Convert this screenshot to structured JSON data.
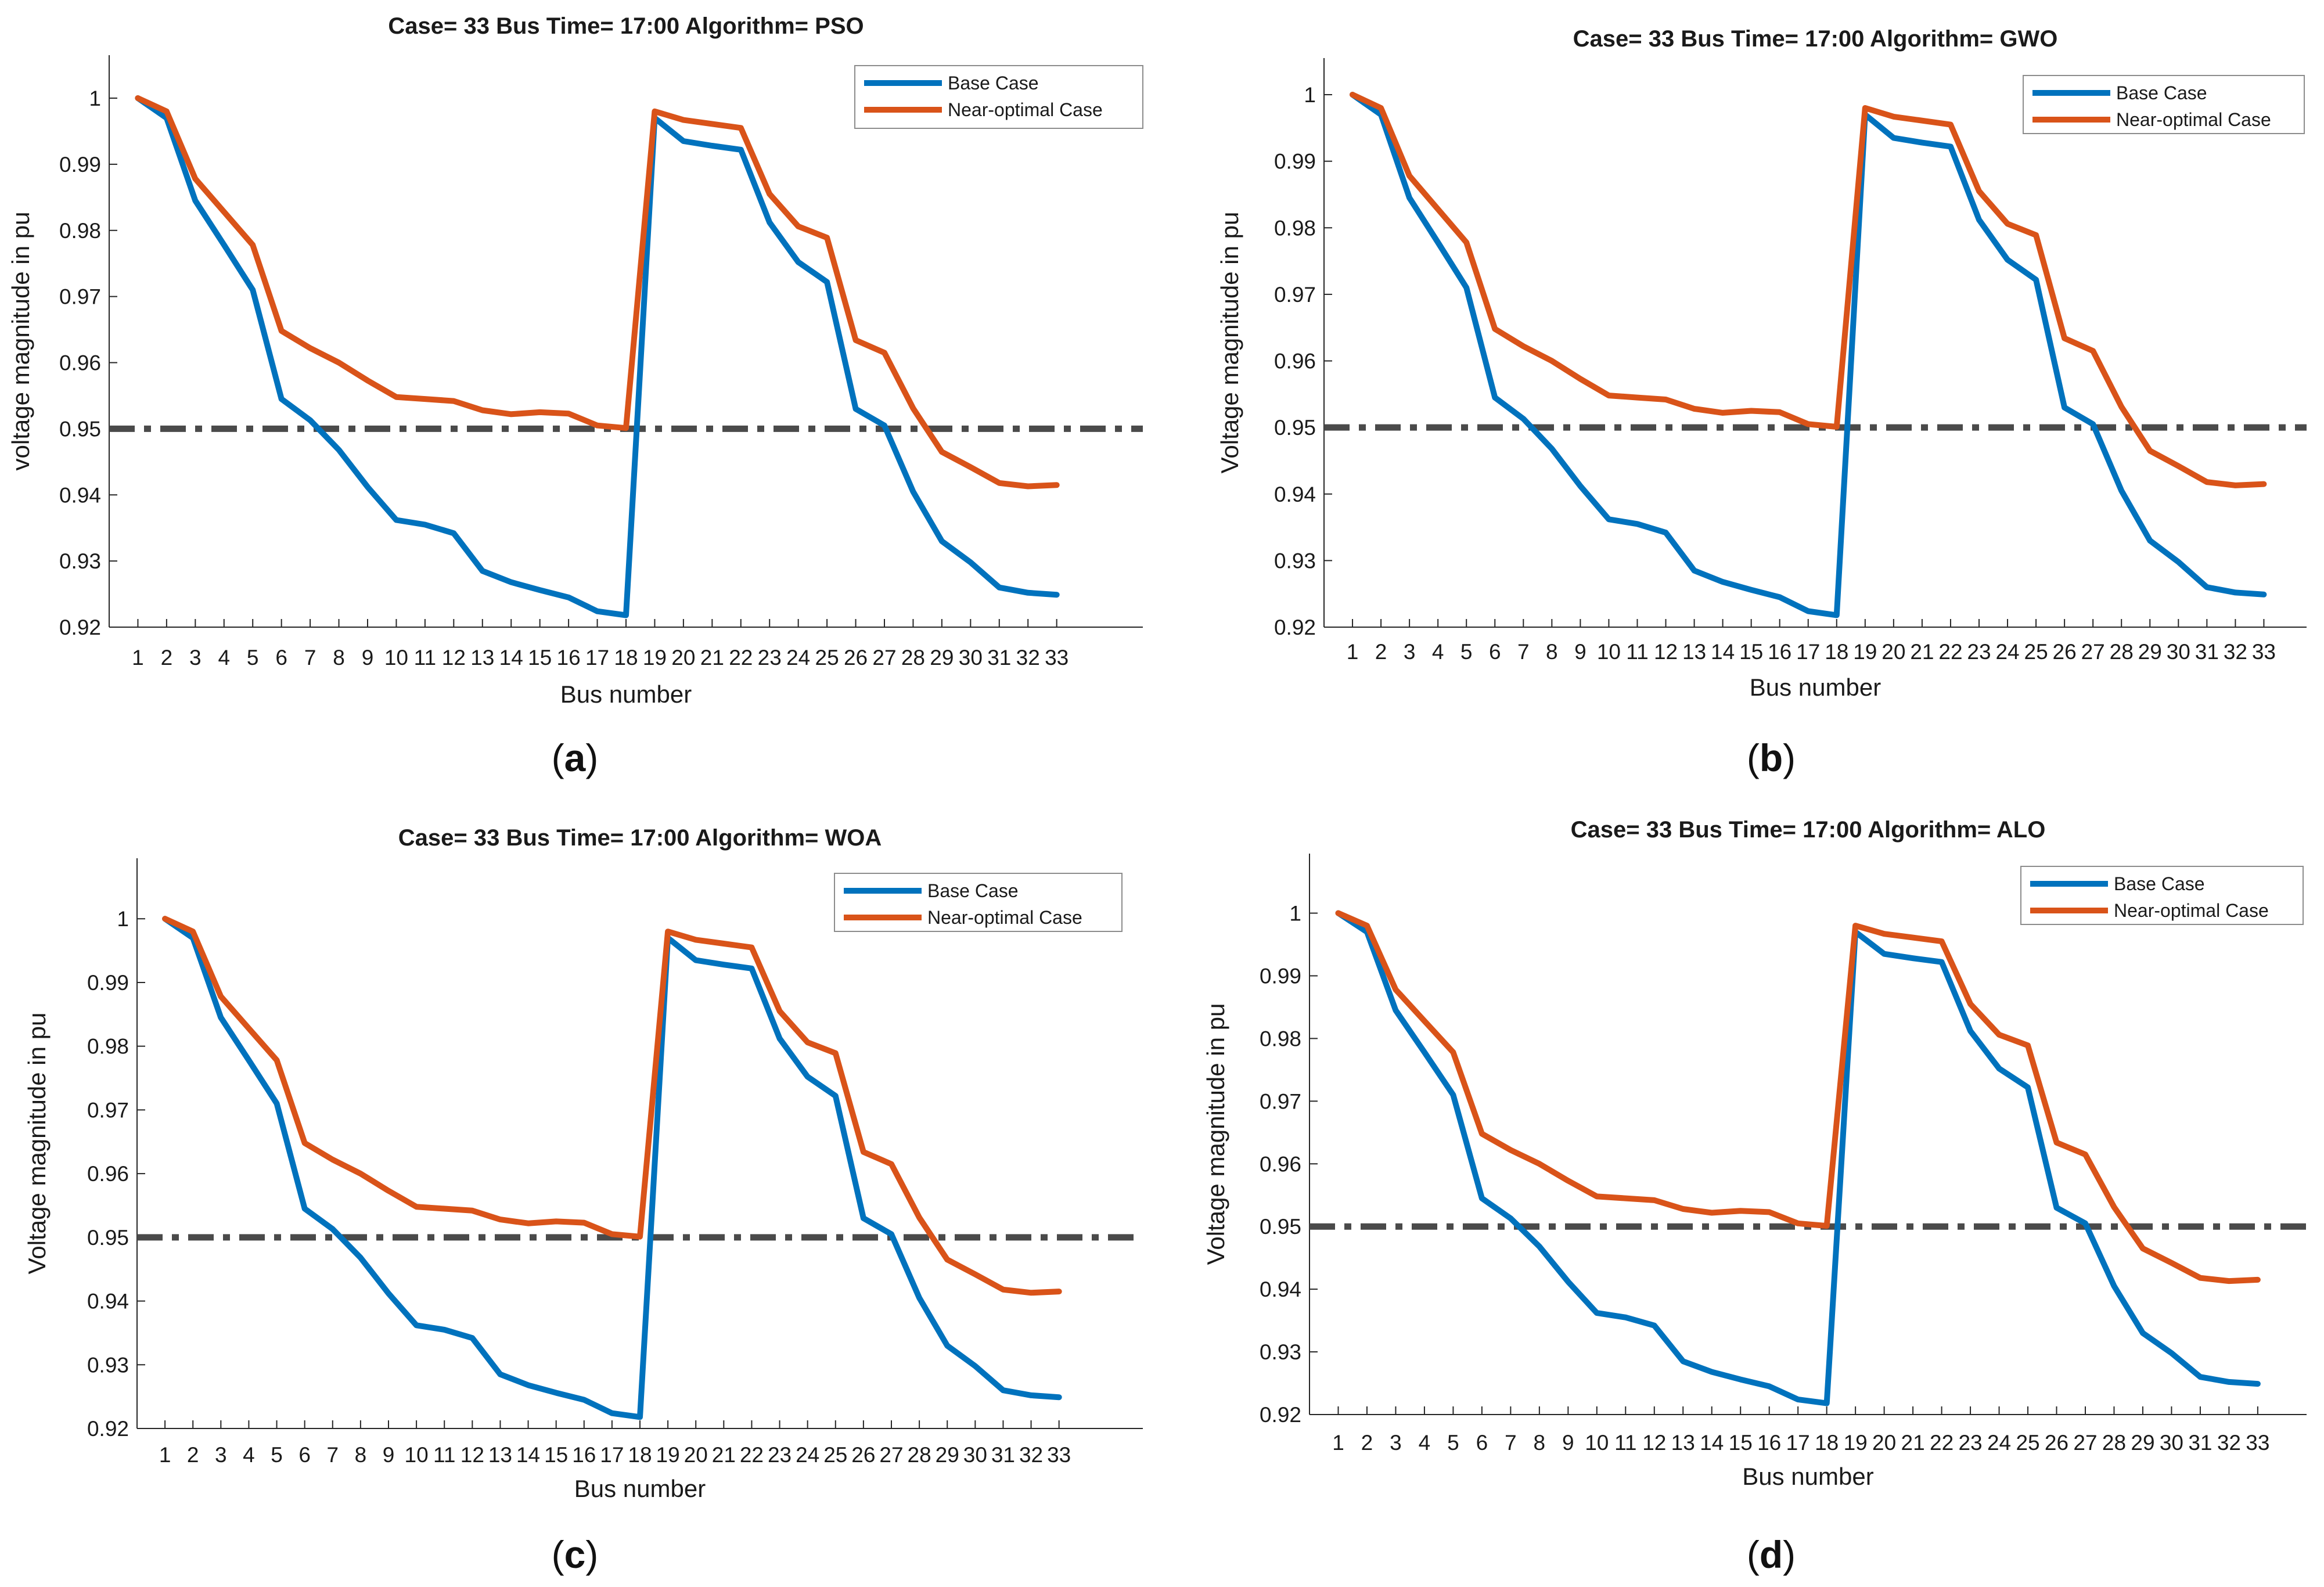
{
  "chart_data": [
    {
      "type": "line",
      "panel_label": "(a)",
      "panel_label_letter": "a",
      "title": "Case= 33 Bus Time= 17:00 Algorithm= PSO",
      "xlabel": "Bus number",
      "ylabel": "voltage magnitude in pu",
      "categories": [
        "1",
        "2",
        "3",
        "4",
        "5",
        "6",
        "7",
        "8",
        "9",
        "10",
        "11",
        "12",
        "13",
        "14",
        "15",
        "16",
        "17",
        "18",
        "19",
        "20",
        "21",
        "22",
        "23",
        "24",
        "25",
        "26",
        "27",
        "28",
        "29",
        "30",
        "31",
        "32",
        "33"
      ],
      "x_ticks": [
        "1",
        "2",
        "3",
        "4",
        "5",
        "6",
        "7",
        "8",
        "9",
        "10",
        "11",
        "12",
        "13",
        "14",
        "15",
        "16",
        "17",
        "18",
        "19",
        "20",
        "21",
        "22",
        "23",
        "24",
        "25",
        "26",
        "27",
        "28",
        "29",
        "30",
        "31",
        "32",
        "33"
      ],
      "y_ticks": [
        "0.92",
        "0.93",
        "0.94",
        "0.95",
        "0.96",
        "0.97",
        "0.98",
        "0.99",
        "1"
      ],
      "ylim": [
        0.92,
        1.0065
      ],
      "xlim": [
        0,
        36
      ],
      "threshold": 0.95,
      "legend_position": "top-right",
      "series": [
        {
          "name": "Base Case",
          "color": "#0072BD",
          "values": [
            1.0,
            0.997,
            0.9845,
            0.9778,
            0.971,
            0.9545,
            0.9513,
            0.9468,
            0.9412,
            0.9362,
            0.9355,
            0.9342,
            0.9285,
            0.9268,
            0.9256,
            0.9245,
            0.9224,
            0.9218,
            0.997,
            0.9935,
            0.9928,
            0.9922,
            0.9812,
            0.9752,
            0.9722,
            0.953,
            0.9505,
            0.9405,
            0.933,
            0.9298,
            0.926,
            0.9252,
            0.9249
          ]
        },
        {
          "name": "Near-optimal Case",
          "color": "#D95319",
          "values": [
            1.0,
            0.998,
            0.9878,
            0.9828,
            0.9778,
            0.9648,
            0.9622,
            0.96,
            0.9573,
            0.9548,
            0.9545,
            0.9542,
            0.9528,
            0.9522,
            0.9525,
            0.9523,
            0.9505,
            0.9501,
            0.998,
            0.9967,
            0.9961,
            0.9955,
            0.9855,
            0.9806,
            0.9789,
            0.9634,
            0.9615,
            0.9531,
            0.9465,
            0.9442,
            0.9418,
            0.9413,
            0.9415
          ]
        }
      ]
    },
    {
      "type": "line",
      "panel_label": "(b)",
      "panel_label_letter": "b",
      "title": "Case= 33 Bus Time= 17:00 Algorithm= GWO",
      "xlabel": "Bus number",
      "ylabel": "Voltage magnitude in pu",
      "categories": [
        "1",
        "2",
        "3",
        "4",
        "5",
        "6",
        "7",
        "8",
        "9",
        "10",
        "11",
        "12",
        "13",
        "14",
        "15",
        "16",
        "17",
        "18",
        "19",
        "20",
        "21",
        "22",
        "23",
        "24",
        "25",
        "26",
        "27",
        "28",
        "29",
        "30",
        "31",
        "32",
        "33"
      ],
      "x_ticks": [
        "1",
        "2",
        "3",
        "4",
        "5",
        "6",
        "7",
        "8",
        "9",
        "10",
        "11",
        "12",
        "13",
        "14",
        "15",
        "16",
        "17",
        "18",
        "19",
        "20",
        "21",
        "22",
        "23",
        "24",
        "25",
        "26",
        "27",
        "28",
        "29",
        "30",
        "31",
        "32",
        "33"
      ],
      "y_ticks": [
        "0.92",
        "0.93",
        "0.94",
        "0.95",
        "0.96",
        "0.97",
        "0.98",
        "0.99",
        "1"
      ],
      "ylim": [
        0.92,
        1.0055
      ],
      "xlim": [
        0,
        34.5
      ],
      "threshold": 0.95,
      "legend_position": "top-right",
      "series": [
        {
          "name": "Base Case",
          "color": "#0072BD",
          "values": [
            1.0,
            0.997,
            0.9845,
            0.9778,
            0.971,
            0.9545,
            0.9513,
            0.9468,
            0.9412,
            0.9362,
            0.9355,
            0.9342,
            0.9285,
            0.9268,
            0.9256,
            0.9245,
            0.9224,
            0.9218,
            0.997,
            0.9935,
            0.9928,
            0.9922,
            0.9812,
            0.9752,
            0.9722,
            0.953,
            0.9505,
            0.9405,
            0.933,
            0.9298,
            0.926,
            0.9252,
            0.9249
          ]
        },
        {
          "name": "Near-optimal Case",
          "color": "#D95319",
          "values": [
            1.0,
            0.998,
            0.9878,
            0.9828,
            0.9778,
            0.9648,
            0.9622,
            0.96,
            0.9573,
            0.9548,
            0.9545,
            0.9542,
            0.9528,
            0.9522,
            0.9525,
            0.9523,
            0.9505,
            0.9501,
            0.998,
            0.9967,
            0.9961,
            0.9955,
            0.9855,
            0.9806,
            0.9789,
            0.9634,
            0.9615,
            0.9531,
            0.9465,
            0.9442,
            0.9418,
            0.9413,
            0.9415
          ]
        }
      ]
    },
    {
      "type": "line",
      "panel_label": "(c)",
      "panel_label_letter": "c",
      "title": "Case= 33 Bus Time= 17:00 Algorithm= WOA",
      "xlabel": "Bus number",
      "ylabel": "Voltage magnitude in pu",
      "categories": [
        "1",
        "2",
        "3",
        "4",
        "5",
        "6",
        "7",
        "8",
        "9",
        "10",
        "11",
        "12",
        "13",
        "14",
        "15",
        "16",
        "17",
        "18",
        "19",
        "20",
        "21",
        "22",
        "23",
        "24",
        "25",
        "26",
        "27",
        "28",
        "29",
        "30",
        "31",
        "32",
        "33"
      ],
      "x_ticks": [
        "1",
        "2",
        "3",
        "4",
        "5",
        "6",
        "7",
        "8",
        "9",
        "10",
        "11",
        "12",
        "13",
        "14",
        "15",
        "16",
        "17",
        "18",
        "19",
        "20",
        "21",
        "22",
        "23",
        "24",
        "25",
        "26",
        "27",
        "28",
        "29",
        "30",
        "31",
        "32",
        "33"
      ],
      "y_ticks": [
        "0.92",
        "0.93",
        "0.94",
        "0.95",
        "0.96",
        "0.97",
        "0.98",
        "0.99",
        "1"
      ],
      "ylim": [
        0.92,
        1.0095
      ],
      "xlim": [
        0,
        36
      ],
      "threshold": 0.95,
      "legend_position": "top-right",
      "series": [
        {
          "name": "Base Case",
          "color": "#0072BD",
          "values": [
            1.0,
            0.997,
            0.9845,
            0.9778,
            0.971,
            0.9545,
            0.9513,
            0.9468,
            0.9412,
            0.9362,
            0.9355,
            0.9342,
            0.9285,
            0.9268,
            0.9256,
            0.9245,
            0.9224,
            0.9218,
            0.997,
            0.9935,
            0.9928,
            0.9922,
            0.9812,
            0.9752,
            0.9722,
            0.953,
            0.9505,
            0.9405,
            0.933,
            0.9298,
            0.926,
            0.9252,
            0.9249
          ]
        },
        {
          "name": "Near-optimal Case",
          "color": "#D95319",
          "values": [
            1.0,
            0.998,
            0.9878,
            0.9828,
            0.9778,
            0.9648,
            0.9622,
            0.96,
            0.9573,
            0.9548,
            0.9545,
            0.9542,
            0.9528,
            0.9522,
            0.9525,
            0.9523,
            0.9505,
            0.9501,
            0.998,
            0.9967,
            0.9961,
            0.9955,
            0.9855,
            0.9806,
            0.9789,
            0.9634,
            0.9615,
            0.9531,
            0.9465,
            0.9442,
            0.9418,
            0.9413,
            0.9415
          ]
        }
      ]
    },
    {
      "type": "line",
      "panel_label": "(d)",
      "panel_label_letter": "d",
      "title": "Case= 33 Bus Time= 17:00 Algorithm= ALO",
      "xlabel": "Bus number",
      "ylabel": "Voltage magnitude in pu",
      "categories": [
        "1",
        "2",
        "3",
        "4",
        "5",
        "6",
        "7",
        "8",
        "9",
        "10",
        "11",
        "12",
        "13",
        "14",
        "15",
        "16",
        "17",
        "18",
        "19",
        "20",
        "21",
        "22",
        "23",
        "24",
        "25",
        "26",
        "27",
        "28",
        "29",
        "30",
        "31",
        "32",
        "33"
      ],
      "x_ticks": [
        "1",
        "2",
        "3",
        "4",
        "5",
        "6",
        "7",
        "8",
        "9",
        "10",
        "11",
        "12",
        "13",
        "14",
        "15",
        "16",
        "17",
        "18",
        "19",
        "20",
        "21",
        "22",
        "23",
        "24",
        "25",
        "26",
        "27",
        "28",
        "29",
        "30",
        "31",
        "32",
        "33"
      ],
      "y_ticks": [
        "0.92",
        "0.93",
        "0.94",
        "0.95",
        "0.96",
        "0.97",
        "0.98",
        "0.99",
        "1"
      ],
      "ylim": [
        0.92,
        1.0095
      ],
      "xlim": [
        0,
        34.7
      ],
      "threshold": 0.95,
      "legend_position": "top-right",
      "series": [
        {
          "name": "Base Case",
          "color": "#0072BD",
          "values": [
            1.0,
            0.997,
            0.9845,
            0.9778,
            0.971,
            0.9545,
            0.9513,
            0.9468,
            0.9412,
            0.9362,
            0.9355,
            0.9342,
            0.9285,
            0.9268,
            0.9256,
            0.9245,
            0.9224,
            0.9218,
            0.997,
            0.9935,
            0.9928,
            0.9922,
            0.9812,
            0.9752,
            0.9722,
            0.953,
            0.9505,
            0.9405,
            0.933,
            0.9298,
            0.926,
            0.9252,
            0.9249
          ]
        },
        {
          "name": "Near-optimal Case",
          "color": "#D95319",
          "values": [
            1.0,
            0.998,
            0.9878,
            0.9828,
            0.9778,
            0.9648,
            0.9622,
            0.96,
            0.9573,
            0.9548,
            0.9545,
            0.9542,
            0.9528,
            0.9522,
            0.9525,
            0.9523,
            0.9505,
            0.9501,
            0.998,
            0.9967,
            0.9961,
            0.9955,
            0.9855,
            0.9806,
            0.9789,
            0.9634,
            0.9615,
            0.9531,
            0.9465,
            0.9442,
            0.9418,
            0.9413,
            0.9415
          ]
        }
      ]
    }
  ],
  "colors": {
    "threshold_line": "#4a4a4a",
    "axis": "#262626",
    "text": "#1a1a1a"
  }
}
